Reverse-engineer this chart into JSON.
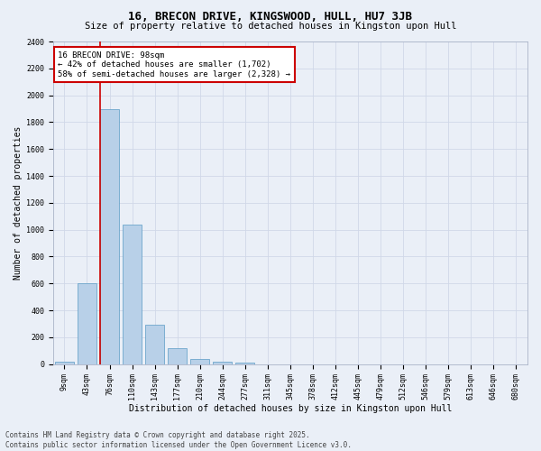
{
  "title": "16, BRECON DRIVE, KINGSWOOD, HULL, HU7 3JB",
  "subtitle": "Size of property relative to detached houses in Kingston upon Hull",
  "xlabel": "Distribution of detached houses by size in Kingston upon Hull",
  "ylabel": "Number of detached properties",
  "categories": [
    "9sqm",
    "43sqm",
    "76sqm",
    "110sqm",
    "143sqm",
    "177sqm",
    "210sqm",
    "244sqm",
    "277sqm",
    "311sqm",
    "345sqm",
    "378sqm",
    "412sqm",
    "445sqm",
    "479sqm",
    "512sqm",
    "546sqm",
    "579sqm",
    "613sqm",
    "646sqm",
    "680sqm"
  ],
  "values": [
    15,
    600,
    1900,
    1040,
    290,
    115,
    38,
    20,
    10,
    0,
    0,
    0,
    0,
    0,
    0,
    0,
    0,
    0,
    0,
    0,
    0
  ],
  "bar_color": "#b8d0e8",
  "bar_edge_color": "#5a9bc4",
  "highlight_line_color": "#cc0000",
  "highlight_bar_index": 2,
  "annotation_line1": "16 BRECON DRIVE: 98sqm",
  "annotation_line2": "← 42% of detached houses are smaller (1,702)",
  "annotation_line3": "58% of semi-detached houses are larger (2,328) →",
  "annotation_box_color": "#cc0000",
  "annotation_fill_color": "#ffffff",
  "ylim": [
    0,
    2400
  ],
  "yticks": [
    0,
    200,
    400,
    600,
    800,
    1000,
    1200,
    1400,
    1600,
    1800,
    2000,
    2200,
    2400
  ],
  "grid_color": "#d0d8e8",
  "bg_color": "#eaeff7",
  "footer": "Contains HM Land Registry data © Crown copyright and database right 2025.\nContains public sector information licensed under the Open Government Licence v3.0.",
  "title_fontsize": 9,
  "subtitle_fontsize": 7.5,
  "xlabel_fontsize": 7,
  "ylabel_fontsize": 7,
  "tick_fontsize": 6,
  "annotation_fontsize": 6.5,
  "footer_fontsize": 5.5
}
